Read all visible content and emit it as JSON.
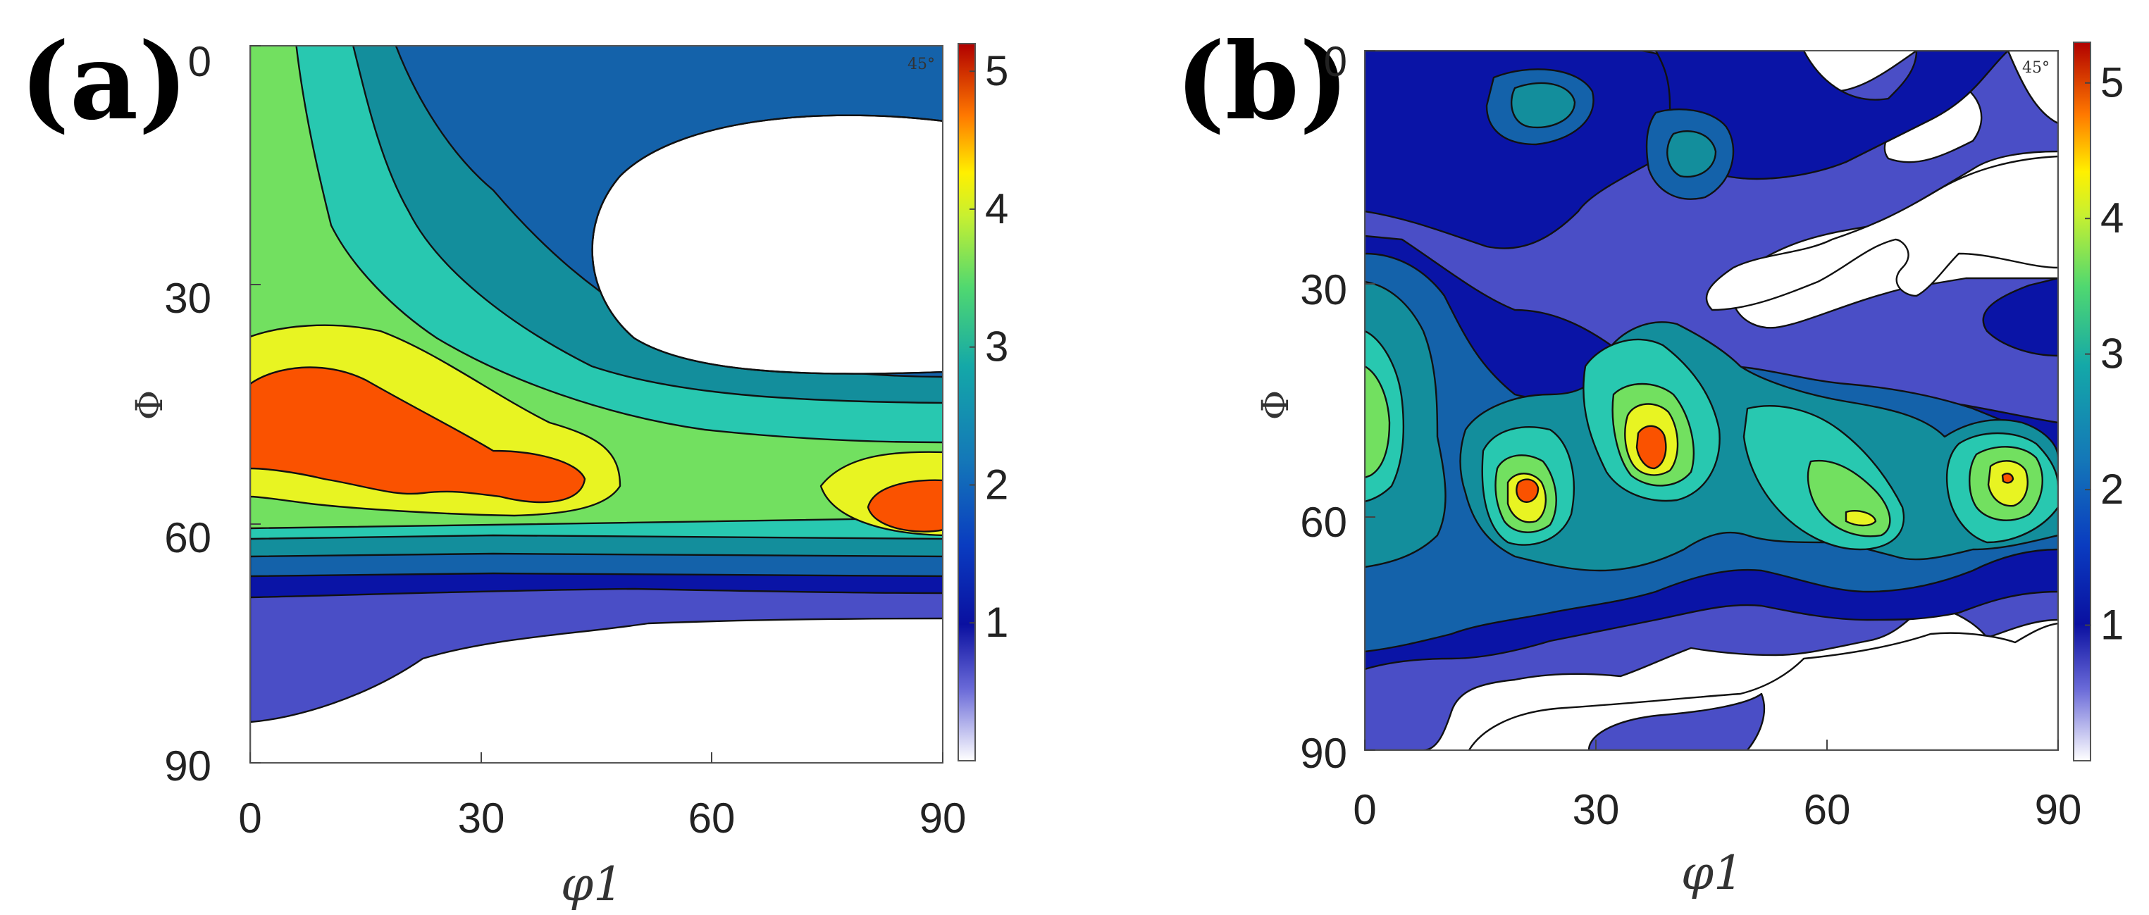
{
  "chart_data": [
    {
      "type": "heatmap",
      "panel_label": "(a)",
      "xlabel": "φ1",
      "ylabel": "Φ",
      "x_ticks": [
        "0",
        "30",
        "60",
        "90"
      ],
      "y_ticks": [
        "0",
        "30",
        "60",
        "90"
      ],
      "xlim": [
        0,
        90
      ],
      "ylim": [
        0,
        90
      ],
      "y_axis_inverted": true,
      "section_annotation": "45°",
      "colorbar": {
        "min": 0,
        "max": 5.2,
        "ticks": [
          "1",
          "2",
          "3",
          "4",
          "5"
        ]
      },
      "color_levels": [
        0.5,
        1.0,
        1.5,
        2.0,
        2.5,
        3.0,
        3.5,
        4.0,
        4.5
      ],
      "features": [
        {
          "phi1": 10,
          "Phi": 47,
          "value": 4.7,
          "description": "maximum near phi1 0-40, Phi 43-55"
        },
        {
          "phi1": 82,
          "Phi": 56,
          "value": 4.6,
          "description": "maximum near phi1 80-90, Phi 53-58"
        },
        {
          "phi1": 70,
          "Phi": 15,
          "value": 0.3,
          "description": "low-intensity region phi1 45-90, Phi 3-40"
        }
      ]
    },
    {
      "type": "heatmap",
      "panel_label": "(b)",
      "xlabel": "φ1",
      "ylabel": "Φ",
      "x_ticks": [
        "0",
        "30",
        "60",
        "90"
      ],
      "y_ticks": [
        "0",
        "30",
        "60",
        "90"
      ],
      "xlim": [
        0,
        90
      ],
      "ylim": [
        0,
        90
      ],
      "y_axis_inverted": true,
      "section_annotation": "45°",
      "colorbar": {
        "min": 0,
        "max": 5.3,
        "ticks": [
          "1",
          "2",
          "3",
          "4",
          "5"
        ]
      },
      "color_levels": [
        0.5,
        1.0,
        1.5,
        2.0,
        2.5,
        3.0,
        3.5,
        4.0,
        4.5
      ],
      "features": [
        {
          "phi1": 21,
          "Phi": 56,
          "value": 4.8,
          "description": "local maximum"
        },
        {
          "phi1": 37,
          "Phi": 51,
          "value": 5.1,
          "description": "global maximum"
        },
        {
          "phi1": 64,
          "Phi": 59,
          "value": 4.2,
          "description": "local maximum"
        },
        {
          "phi1": 81,
          "Phi": 54,
          "value": 4.6,
          "description": "local maximum"
        },
        {
          "phi1": 3,
          "Phi": 48,
          "value": 3.3,
          "description": "edge maximum"
        }
      ]
    }
  ],
  "colors": {
    "c0": "#ffffff",
    "c1": "#4a4ec6",
    "c2": "#0a14a6",
    "c3": "#1462aa",
    "c4": "#138e9c",
    "c5": "#28c8b0",
    "c6": "#72e060",
    "c7": "#e8f422",
    "c8": "#fa5200"
  }
}
